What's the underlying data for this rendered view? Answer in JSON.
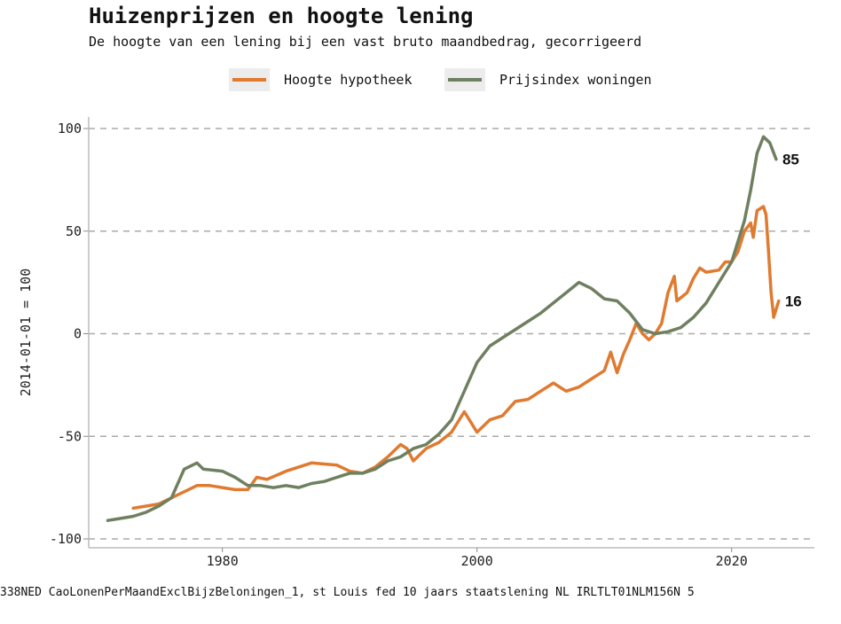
{
  "title": "Huizenprijzen en hoogte lening",
  "subtitle": "De hoogte van een lening bij een vast bruto maandbedrag, gecorrigeerd",
  "caption": "338NED CaoLonenPerMaandExclBijzBeloningen_1, st Louis fed 10 jaars staatslening NL IRLTLT01NLM156N   5",
  "chart_data": {
    "type": "line",
    "title": "Huizenprijzen en hoogte lening",
    "subtitle": "De hoogte van een lening bij een vast bruto maandbedrag, gecorrigeerd",
    "ylabel": "2014-01-01 = 100",
    "xlabel": "",
    "xlim": [
      1969.5,
      2026.5
    ],
    "ylim": [
      -100,
      100
    ],
    "xticks": [
      1980,
      2000,
      2020
    ],
    "yticks": [
      -100,
      -50,
      0,
      50,
      100
    ],
    "grid": "horizontal-dashed",
    "legend": "top",
    "series": [
      {
        "name": "Hoogte hypotheek",
        "color": "#e07a30",
        "end_label": "16",
        "points": [
          [
            1973,
            -85
          ],
          [
            1974,
            -84
          ],
          [
            1975,
            -83
          ],
          [
            1976,
            -80
          ],
          [
            1977,
            -77
          ],
          [
            1978,
            -74
          ],
          [
            1979,
            -74
          ],
          [
            1980,
            -75
          ],
          [
            1981,
            -76
          ],
          [
            1982,
            -76
          ],
          [
            1982.7,
            -70
          ],
          [
            1983.5,
            -71
          ],
          [
            1985,
            -67
          ],
          [
            1987,
            -63
          ],
          [
            1989,
            -64
          ],
          [
            1990,
            -67
          ],
          [
            1991,
            -68
          ],
          [
            1992,
            -65
          ],
          [
            1993,
            -60
          ],
          [
            1994,
            -54
          ],
          [
            1994.5,
            -56
          ],
          [
            1995,
            -62
          ],
          [
            1996,
            -56
          ],
          [
            1997,
            -53
          ],
          [
            1998,
            -48
          ],
          [
            1999,
            -38
          ],
          [
            2000,
            -48
          ],
          [
            2001,
            -42
          ],
          [
            2002,
            -40
          ],
          [
            2003,
            -33
          ],
          [
            2004,
            -32
          ],
          [
            2005,
            -28
          ],
          [
            2006,
            -24
          ],
          [
            2007,
            -28
          ],
          [
            2008,
            -26
          ],
          [
            2009,
            -22
          ],
          [
            2010,
            -18
          ],
          [
            2010.5,
            -9
          ],
          [
            2011,
            -19
          ],
          [
            2011.5,
            -10
          ],
          [
            2012,
            -3
          ],
          [
            2012.5,
            5
          ],
          [
            2013,
            0
          ],
          [
            2013.5,
            -3
          ],
          [
            2014,
            0
          ],
          [
            2014.5,
            5
          ],
          [
            2015,
            20
          ],
          [
            2015.5,
            28
          ],
          [
            2015.7,
            16
          ],
          [
            2016.5,
            20
          ],
          [
            2017,
            27
          ],
          [
            2017.5,
            32
          ],
          [
            2018,
            30
          ],
          [
            2019,
            31
          ],
          [
            2019.5,
            35
          ],
          [
            2020,
            35
          ],
          [
            2020.5,
            40
          ],
          [
            2021,
            50
          ],
          [
            2021.5,
            54
          ],
          [
            2021.7,
            47
          ],
          [
            2022,
            60
          ],
          [
            2022.5,
            62
          ],
          [
            2022.7,
            58
          ],
          [
            2022.9,
            40
          ],
          [
            2023.1,
            20
          ],
          [
            2023.3,
            8
          ],
          [
            2023.5,
            12
          ],
          [
            2023.7,
            16
          ]
        ]
      },
      {
        "name": "Prijsindex woningen",
        "color": "#6f8060",
        "end_label": "85",
        "points": [
          [
            1971,
            -91
          ],
          [
            1972,
            -90
          ],
          [
            1973,
            -89
          ],
          [
            1974,
            -87
          ],
          [
            1975,
            -84
          ],
          [
            1976,
            -80
          ],
          [
            1977,
            -66
          ],
          [
            1978,
            -63
          ],
          [
            1978.5,
            -66
          ],
          [
            1980,
            -67
          ],
          [
            1981,
            -70
          ],
          [
            1982,
            -74
          ],
          [
            1983,
            -74
          ],
          [
            1984,
            -75
          ],
          [
            1985,
            -74
          ],
          [
            1986,
            -75
          ],
          [
            1987,
            -73
          ],
          [
            1988,
            -72
          ],
          [
            1989,
            -70
          ],
          [
            1990,
            -68
          ],
          [
            1991,
            -68
          ],
          [
            1992,
            -66
          ],
          [
            1993,
            -62
          ],
          [
            1994,
            -60
          ],
          [
            1995,
            -56
          ],
          [
            1996,
            -54
          ],
          [
            1997,
            -49
          ],
          [
            1998,
            -42
          ],
          [
            1999,
            -28
          ],
          [
            2000,
            -14
          ],
          [
            2001,
            -6
          ],
          [
            2002,
            -2
          ],
          [
            2003,
            2
          ],
          [
            2004,
            6
          ],
          [
            2005,
            10
          ],
          [
            2006,
            15
          ],
          [
            2007,
            20
          ],
          [
            2008,
            25
          ],
          [
            2009,
            22
          ],
          [
            2010,
            17
          ],
          [
            2011,
            16
          ],
          [
            2012,
            10
          ],
          [
            2013,
            2
          ],
          [
            2014,
            0
          ],
          [
            2015,
            1
          ],
          [
            2016,
            3
          ],
          [
            2017,
            8
          ],
          [
            2018,
            15
          ],
          [
            2019,
            25
          ],
          [
            2020,
            35
          ],
          [
            2021,
            55
          ],
          [
            2021.5,
            70
          ],
          [
            2022,
            88
          ],
          [
            2022.5,
            96
          ],
          [
            2023,
            93
          ],
          [
            2023.5,
            85
          ]
        ]
      }
    ]
  }
}
